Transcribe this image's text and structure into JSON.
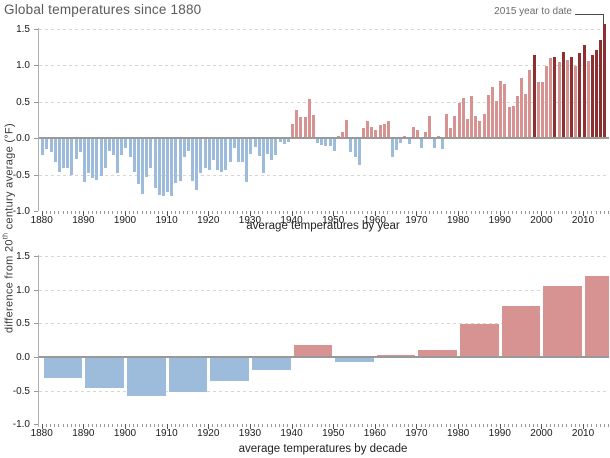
{
  "title": "Global temperatures since 1880",
  "annotation": {
    "label": "2015 year to date"
  },
  "y_axis": {
    "label_pre": "difference from 20",
    "label_sup": "th",
    "label_post": " century average (°F)"
  },
  "colors": {
    "warm": "#d79292",
    "cool": "#9dbbdb",
    "record": "#8d3031",
    "zero_line": "#999999",
    "grid": "#d6d6d6"
  },
  "chart_data": [
    {
      "type": "bar",
      "name": "yearly",
      "xlabel": "average temperatures by year",
      "ylabel": "difference from 20th century average (°F)",
      "years_start": 1880,
      "years_end": 2015,
      "ylim": [
        -1.0,
        1.5
      ],
      "yticks": [
        1.5,
        1.0,
        0.5,
        0.0,
        -0.5,
        -1.0
      ],
      "xticks": [
        1880,
        1890,
        1900,
        1910,
        1920,
        1930,
        1940,
        1950,
        1960,
        1970,
        1980,
        1990,
        2000,
        2010
      ],
      "record_years": [
        1998,
        2003,
        2005,
        2007,
        2009,
        2010,
        2012,
        2013,
        2014,
        2015
      ],
      "annotation_year": 2015,
      "values": [
        -0.22,
        -0.14,
        -0.18,
        -0.32,
        -0.45,
        -0.4,
        -0.4,
        -0.49,
        -0.27,
        -0.18,
        -0.59,
        -0.47,
        -0.54,
        -0.56,
        -0.5,
        -0.4,
        -0.16,
        -0.22,
        -0.47,
        -0.22,
        -0.13,
        -0.25,
        -0.45,
        -0.61,
        -0.76,
        -0.52,
        -0.4,
        -0.67,
        -0.77,
        -0.78,
        -0.72,
        -0.78,
        -0.6,
        -0.58,
        -0.25,
        -0.16,
        -0.58,
        -0.7,
        -0.47,
        -0.4,
        -0.43,
        -0.29,
        -0.43,
        -0.45,
        -0.43,
        -0.32,
        -0.13,
        -0.31,
        -0.32,
        -0.59,
        -0.2,
        -0.11,
        -0.23,
        -0.47,
        -0.2,
        -0.29,
        -0.22,
        -0.04,
        -0.07,
        -0.04,
        0.18,
        0.37,
        0.28,
        0.28,
        0.52,
        0.3,
        -0.05,
        -0.08,
        -0.1,
        -0.1,
        -0.17,
        0.02,
        0.07,
        0.23,
        -0.18,
        -0.25,
        -0.35,
        0.13,
        0.22,
        0.14,
        0.09,
        0.16,
        0.18,
        0.22,
        -0.25,
        -0.15,
        -0.05,
        0.02,
        -0.07,
        0.14,
        0.09,
        -0.13,
        0.07,
        0.29,
        -0.13,
        0.02,
        -0.14,
        0.32,
        0.13,
        0.29,
        0.47,
        0.54,
        0.25,
        0.56,
        0.29,
        0.22,
        0.32,
        0.58,
        0.68,
        0.5,
        0.77,
        0.72,
        0.41,
        0.43,
        0.56,
        0.81,
        0.59,
        0.92,
        1.13,
        0.76,
        0.76,
        0.97,
        1.08,
        1.1,
        1.03,
        1.17,
        1.06,
        1.1,
        0.97,
        1.15,
        1.26,
        1.04,
        1.12,
        1.19,
        1.33,
        1.55
      ]
    },
    {
      "type": "bar",
      "name": "decade",
      "xlabel": "average temperatures by decade",
      "categories": [
        "1880s",
        "1890s",
        "1900s",
        "1910s",
        "1920s",
        "1930s",
        "1940s",
        "1950s",
        "1960s",
        "1970s",
        "1980s",
        "1990s",
        "2000s",
        "2010s"
      ],
      "decade_start_years": [
        1880,
        1890,
        1900,
        1910,
        1920,
        1930,
        1940,
        1950,
        1960,
        1970,
        1980,
        1990,
        2000,
        2010
      ],
      "ylim": [
        -1.0,
        1.5
      ],
      "yticks": [
        1.5,
        1.0,
        0.5,
        0.0,
        -0.5,
        -1.0
      ],
      "xticks": [
        1880,
        1890,
        1900,
        1910,
        1920,
        1930,
        1940,
        1950,
        1960,
        1970,
        1980,
        1990,
        2000,
        2010
      ],
      "values": [
        -0.29,
        -0.44,
        -0.56,
        -0.5,
        -0.34,
        -0.18,
        0.17,
        -0.06,
        0.01,
        0.09,
        0.47,
        0.74,
        1.04,
        1.18
      ]
    }
  ]
}
